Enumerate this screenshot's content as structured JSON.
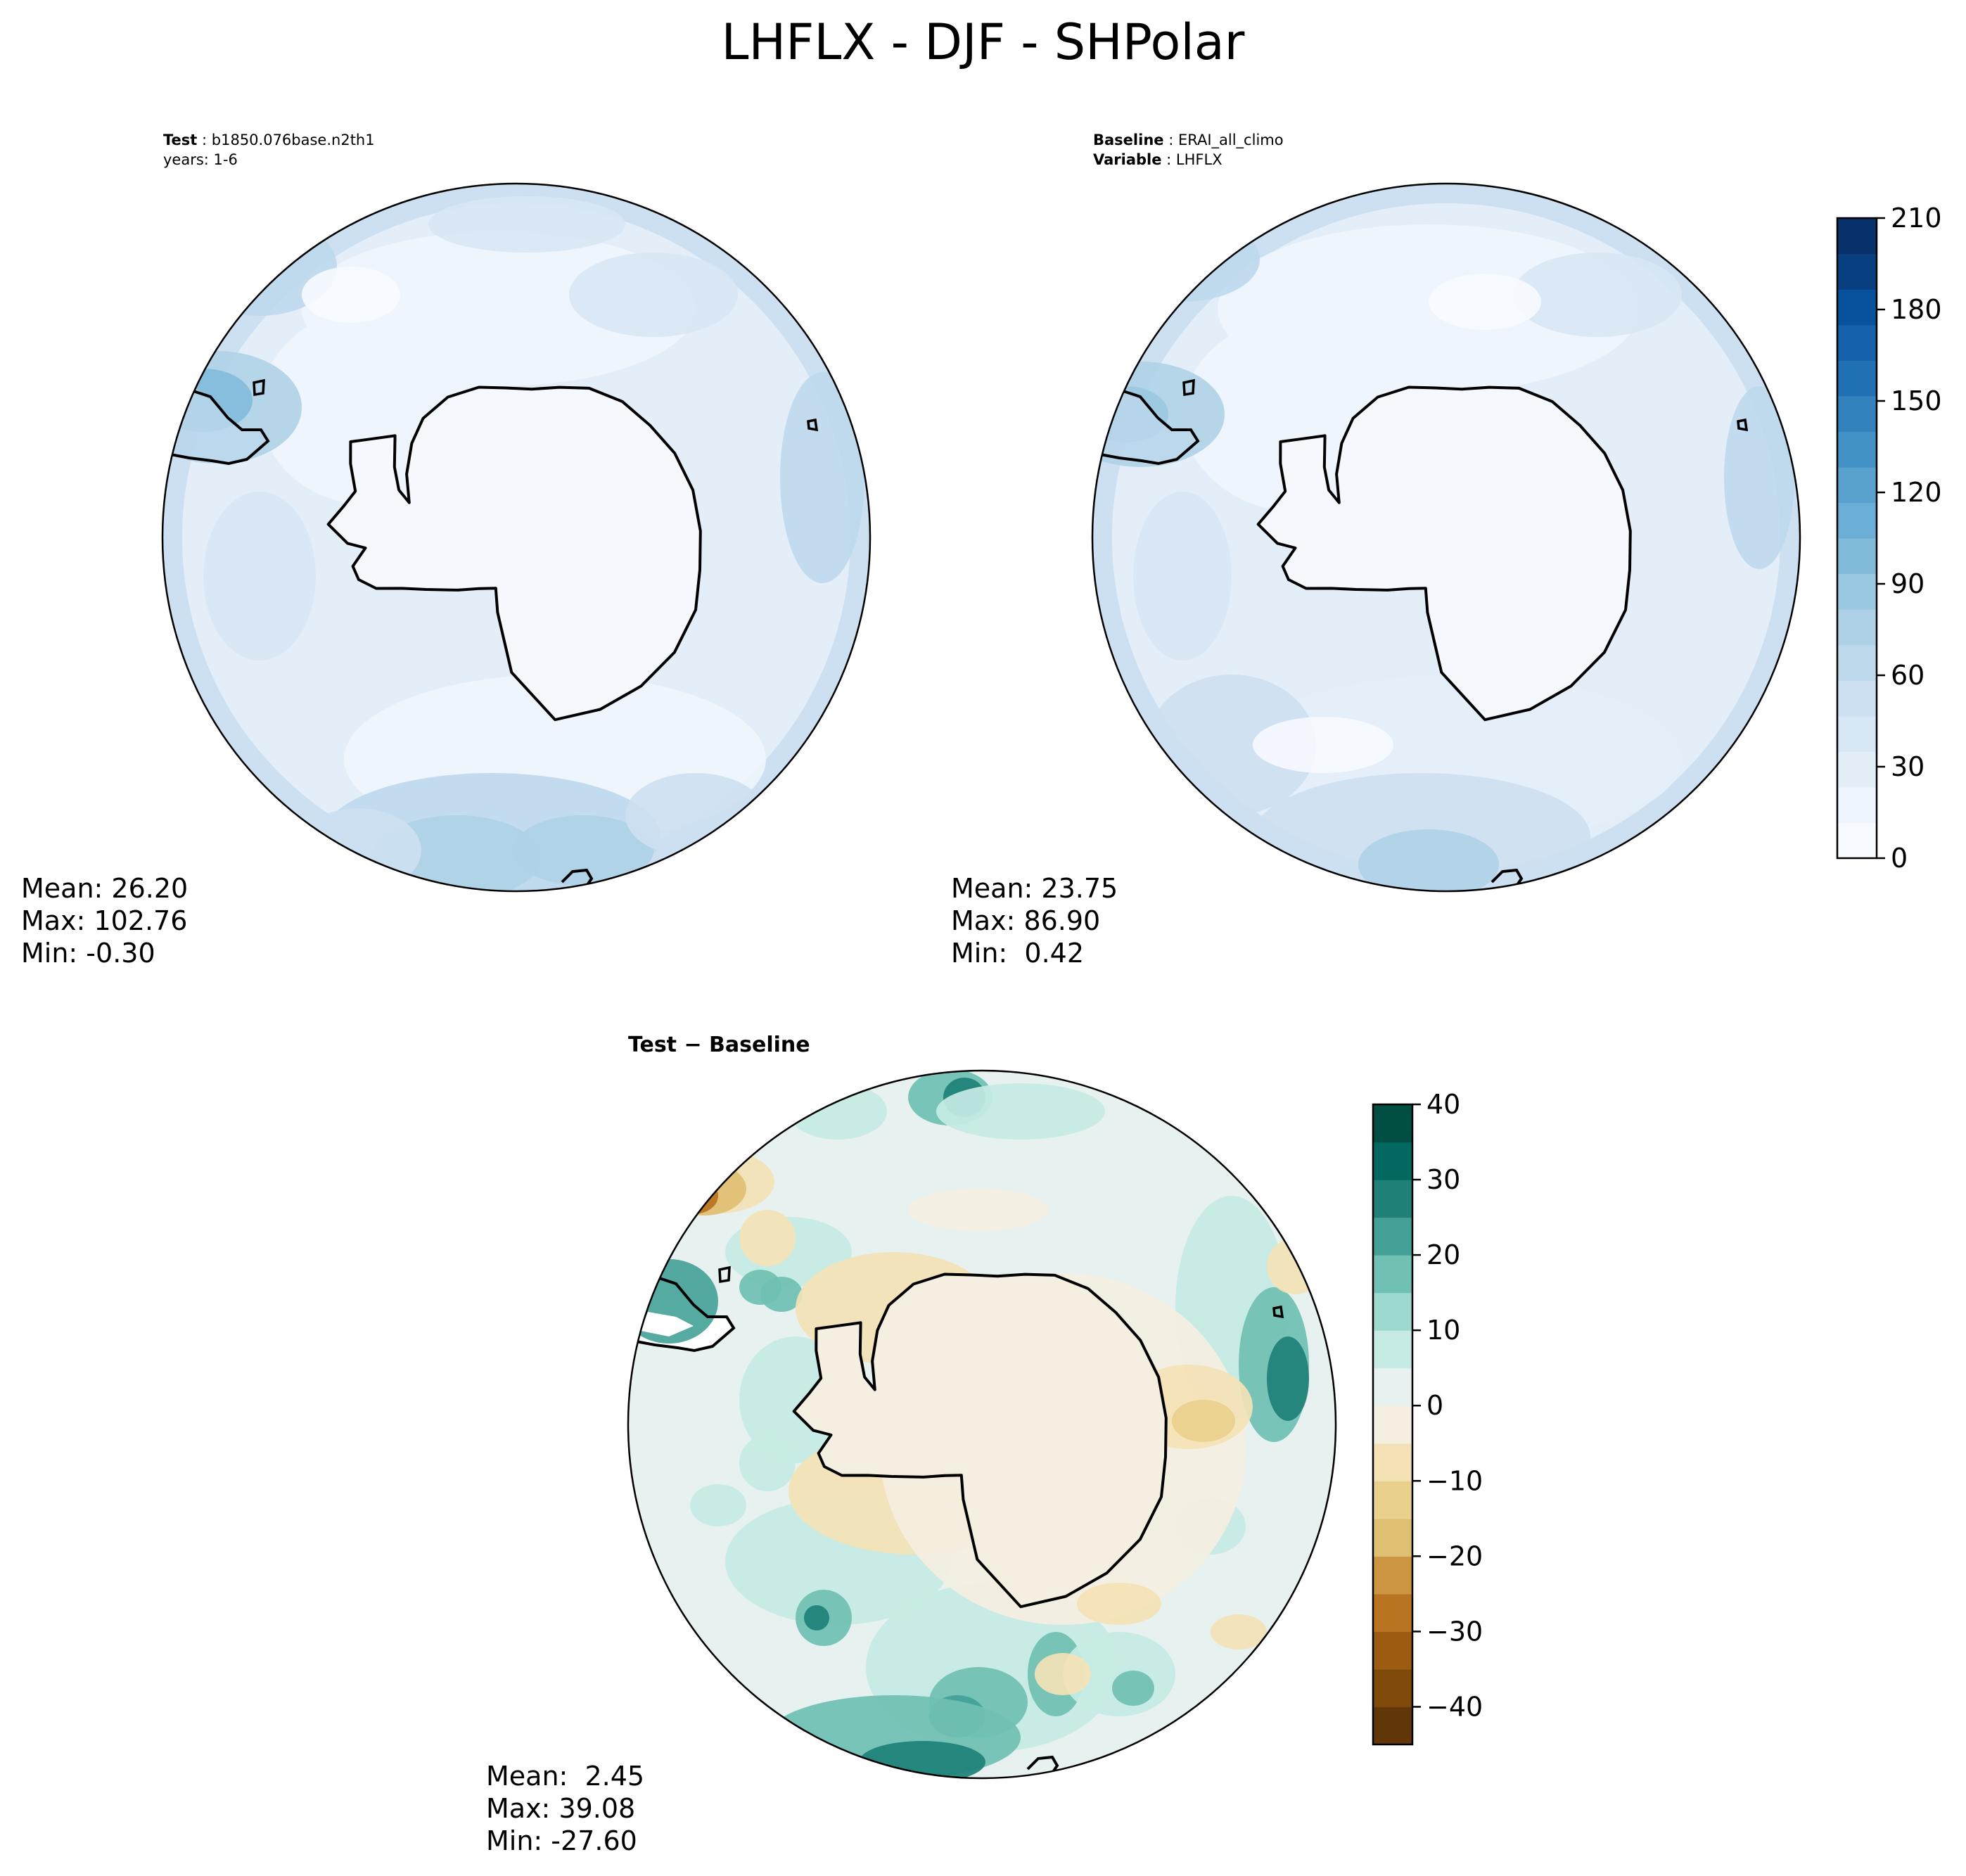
{
  "title": "LHFLX - DJF - SHPolar",
  "panels": [
    {
      "id": "test",
      "header": [
        {
          "key": "Test",
          "value": "b1850.076base.n2th1"
        },
        {
          "key": "",
          "value": "years: 1-6"
        }
      ],
      "stats": {
        "mean": "Mean: 26.20",
        "max": "Max: 102.76",
        "min": "Min: -0.30"
      }
    },
    {
      "id": "baseline",
      "header": [
        {
          "key": "Baseline",
          "value": "ERAI_all_climo"
        },
        {
          "key": "Variable",
          "value": "LHFLX"
        }
      ],
      "stats": {
        "mean": "Mean: 23.75",
        "max": "Max: 86.90",
        "min": "Min:  0.42"
      }
    },
    {
      "id": "difference",
      "header": [
        {
          "key": "Test − Baseline",
          "value": ""
        }
      ],
      "stats": {
        "mean": "Mean:  2.45",
        "max": "Max: 39.08",
        "min": "Min: -27.60"
      }
    }
  ],
  "chart_data": [
    {
      "type": "heatmap",
      "projection": "south-polar-stereographic",
      "panel": "test",
      "colormap": "Blues",
      "colorbar": {
        "ticks": [
          0,
          30,
          60,
          90,
          120,
          150,
          180,
          210
        ],
        "tick_labels": [
          "0",
          "30",
          "60",
          "90",
          "120",
          "150",
          "180",
          "210"
        ],
        "range": [
          0,
          210
        ]
      }
    },
    {
      "type": "heatmap",
      "projection": "south-polar-stereographic",
      "panel": "baseline",
      "colormap": "Blues",
      "colorbar": {
        "ticks": [
          0,
          30,
          60,
          90,
          120,
          150,
          180,
          210
        ],
        "tick_labels": [
          "0",
          "30",
          "60",
          "90",
          "120",
          "150",
          "180",
          "210"
        ],
        "range": [
          0,
          210
        ]
      }
    },
    {
      "type": "heatmap",
      "projection": "south-polar-stereographic",
      "panel": "difference",
      "colormap": "BrBG",
      "colorbar": {
        "ticks": [
          -40,
          -30,
          -20,
          -10,
          0,
          10,
          20,
          30,
          40
        ],
        "tick_labels": [
          "−40",
          "−30",
          "−20",
          "−10",
          "0",
          "10",
          "20",
          "30",
          "40"
        ],
        "range": [
          -45,
          40
        ]
      }
    }
  ],
  "colors": {
    "blues": [
      "#f7fbff",
      "#eef5fc",
      "#e3eef9",
      "#d8e7f5",
      "#cde0f1",
      "#bed8ec",
      "#afd1e7",
      "#9ac8e0",
      "#83bbdb",
      "#6baed6",
      "#58a1cf",
      "#4292c6",
      "#3282be",
      "#2171b5",
      "#1561a9",
      "#08519c",
      "#083f80",
      "#08306b"
    ],
    "brbg": [
      "#613609",
      "#7f4909",
      "#9b5b10",
      "#b87421",
      "#cd9642",
      "#dfbf72",
      "#ead08d",
      "#f4e2b6",
      "#f5efe2",
      "#e7f1ef",
      "#c5ebe4",
      "#9dd9ce",
      "#70c0b3",
      "#43a197",
      "#1e8077",
      "#026860",
      "#004f42"
    ],
    "land": "#f5f9fe",
    "coast": "#000000"
  }
}
